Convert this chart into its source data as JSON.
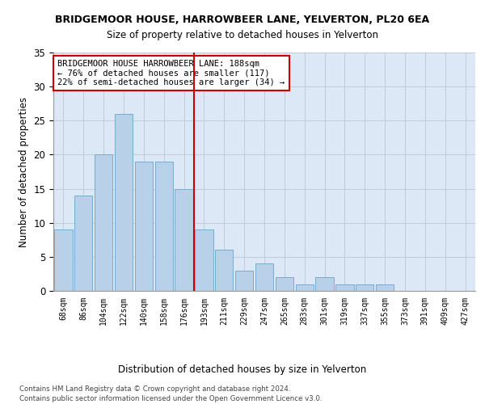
{
  "title": "BRIDGEMOOR HOUSE, HARROWBEER LANE, YELVERTON, PL20 6EA",
  "subtitle": "Size of property relative to detached houses in Yelverton",
  "xlabel": "Distribution of detached houses by size in Yelverton",
  "ylabel": "Number of detached properties",
  "categories": [
    "68sqm",
    "86sqm",
    "104sqm",
    "122sqm",
    "140sqm",
    "158sqm",
    "176sqm",
    "193sqm",
    "211sqm",
    "229sqm",
    "247sqm",
    "265sqm",
    "283sqm",
    "301sqm",
    "319sqm",
    "337sqm",
    "355sqm",
    "373sqm",
    "391sqm",
    "409sqm",
    "427sqm"
  ],
  "values": [
    9,
    14,
    20,
    26,
    19,
    19,
    15,
    9,
    6,
    3,
    4,
    2,
    1,
    2,
    1,
    1,
    1,
    0,
    0,
    0,
    0
  ],
  "bar_color": "#b8d0e8",
  "bar_edge_color": "#7aaad0",
  "vline_color": "#cc0000",
  "annotation_text": "BRIDGEMOOR HOUSE HARROWBEER LANE: 188sqm\n← 76% of detached houses are smaller (117)\n22% of semi-detached houses are larger (34) →",
  "annotation_box_color": "#ffffff",
  "annotation_box_edge": "#cc0000",
  "ylim": [
    0,
    35
  ],
  "yticks": [
    0,
    5,
    10,
    15,
    20,
    25,
    30,
    35
  ],
  "footer_line1": "Contains HM Land Registry data © Crown copyright and database right 2024.",
  "footer_line2": "Contains public sector information licensed under the Open Government Licence v3.0.",
  "background_color": "#ffffff",
  "plot_bg_color": "#dce8f5",
  "grid_color": "#c0ccd8"
}
